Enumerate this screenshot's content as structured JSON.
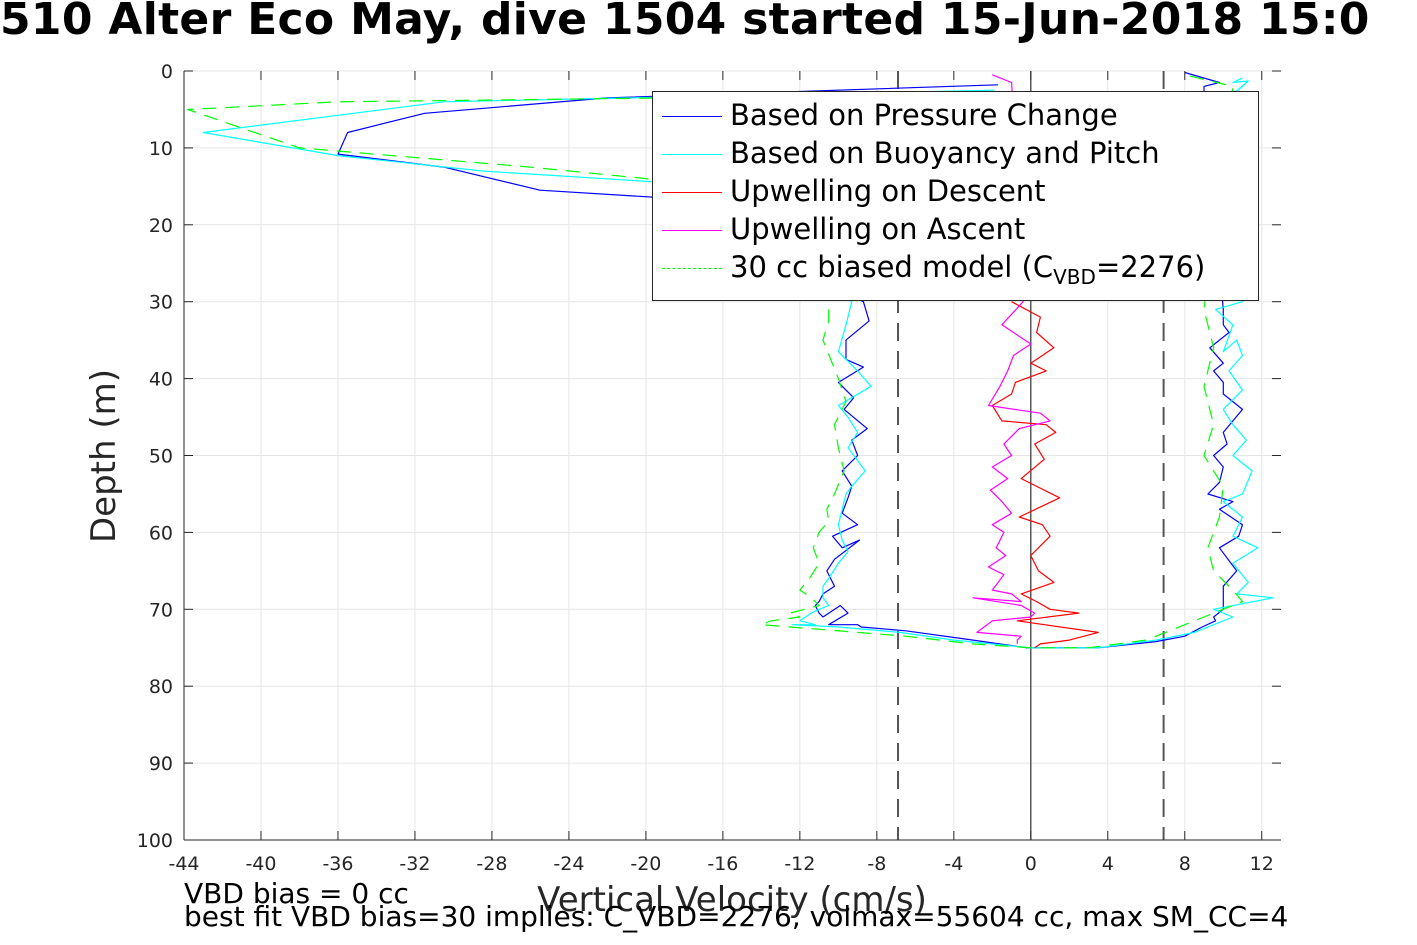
{
  "title": "510 Alter Eco May, dive 1504 started 15-Jun-2018 15:0",
  "footer": {
    "line1": "VBD bias = 0 cc",
    "line2": "best fit VBD bias=30 implies: C_VBD=2276, volmax=55604 cc, max SM_CC=4"
  },
  "legend": {
    "items": [
      {
        "label": "Based on Pressure Change"
      },
      {
        "label": "Based on Buoyancy and Pitch"
      },
      {
        "label": "Upwelling on Descent"
      },
      {
        "label": "Upwelling on Ascent"
      },
      {
        "label_pre": "30 cc biased model (C",
        "label_sub": "VBD",
        "label_post": "=2276)"
      }
    ]
  },
  "chart_data": {
    "type": "line",
    "title": "510 Alter Eco May, dive 1504 started 15-Jun-2018 15:0",
    "xlabel": "Vertical Velocity (cm/s)",
    "ylabel": "Depth (m)",
    "xlim": [
      -44,
      13
    ],
    "ylim": [
      0,
      100
    ],
    "y_reversed": true,
    "grid": true,
    "legend_position": "top-right",
    "xticks": [
      -44,
      -40,
      -36,
      -32,
      -28,
      -24,
      -20,
      -16,
      -12,
      -8,
      -4,
      0,
      4,
      8,
      12
    ],
    "yticks": [
      0,
      10,
      20,
      30,
      40,
      50,
      60,
      70,
      80,
      90,
      100
    ],
    "reference_lines": [
      {
        "x": -6.9,
        "style": "dashed",
        "color": "#555555"
      },
      {
        "x": 6.9,
        "style": "dashed",
        "color": "#555555"
      },
      {
        "x": 0,
        "style": "solid",
        "color": "#333333"
      }
    ],
    "series": [
      {
        "name": "Based on Pressure Change",
        "color": "#0000ff",
        "style": "solid",
        "x": [
          -1.7,
          -22.0,
          -31.5,
          -35.5,
          -36.0,
          -30.5,
          -25.5,
          -19.0,
          -8.7,
          -8.4,
          -9.6,
          -9.6,
          -8.7,
          -10.0,
          -9.2,
          -9.7,
          -8.5,
          -9.3,
          -9.0,
          -9.8,
          -9.3,
          -9.5,
          -9.8,
          -9.0,
          -10.3,
          -9.8,
          -8.9,
          -10.2,
          -10.6,
          -10.2,
          -10.8,
          -11.0,
          -11.2,
          -11.0,
          -10.8,
          -9.9,
          -9.5,
          -10.5,
          -9.0,
          -8.8,
          -6.5,
          -3.0,
          -0.2,
          3.5,
          6.5,
          8.0,
          8.9,
          9.6,
          9.5,
          10.0,
          10.0,
          10.7,
          9.8,
          10.8,
          11.0,
          9.8,
          10.5,
          9.2,
          9.8,
          10.0,
          9.5,
          10.2,
          10.0,
          11.0,
          10.0,
          10.0,
          9.5,
          10.0,
          9.3,
          10.3,
          10.0,
          10.0,
          9.0,
          9.0,
          9.8,
          8.0
        ],
        "y": [
          1.8,
          3.5,
          5.5,
          8.0,
          10.8,
          12.5,
          15.5,
          16.5,
          30.0,
          32.5,
          35.0,
          37.5,
          38.5,
          40.5,
          42.5,
          44.0,
          46.5,
          48.0,
          50.0,
          52.0,
          54.0,
          55.5,
          57.5,
          59.0,
          60.5,
          62.0,
          61.0,
          63.5,
          65.0,
          67.0,
          68.0,
          69.0,
          69.5,
          70.5,
          71.0,
          69.5,
          70.5,
          72.0,
          72.0,
          72.3,
          72.8,
          74.0,
          75.0,
          75.0,
          74.2,
          73.5,
          72.3,
          71.5,
          71.0,
          70.0,
          67.0,
          65.0,
          62.0,
          60.5,
          59.0,
          57.0,
          56.0,
          55.0,
          53.5,
          51.5,
          50.0,
          48.5,
          47.0,
          44.0,
          42.0,
          40.5,
          39.0,
          38.0,
          36.0,
          34.0,
          33.0,
          31.0,
          4.0,
          2.0,
          1.5,
          0.2
        ]
      },
      {
        "name": "Based on Buoyancy and Pitch",
        "color": "#00ffff",
        "style": "solid",
        "x": [
          -1.9,
          -30.5,
          -43.0,
          -36.0,
          -28.5,
          -19.0,
          -9.3,
          -9.6,
          -10.0,
          -9.0,
          -8.3,
          -10.0,
          -9.5,
          -9.0,
          -9.5,
          -8.6,
          -9.3,
          -9.6,
          -9.8,
          -10.0,
          -9.8,
          -9.5,
          -10.0,
          -10.5,
          -10.8,
          -10.8,
          -10.5,
          -11.0,
          -11.4,
          -12.0,
          -11.2,
          -12.4,
          -10.0,
          -6.8,
          -4.0,
          0.0,
          3.5,
          6.5,
          8.5,
          10.5,
          9.5,
          12.6,
          10.7,
          11.3,
          10.5,
          11.8,
          10.5,
          11.0,
          10.0,
          11.0,
          11.5,
          10.5,
          11.2,
          10.5,
          10.0,
          11.0,
          10.3,
          11.0,
          10.7,
          10.0,
          10.5,
          9.6,
          11.0,
          10.0,
          11.0,
          10.5,
          11.3,
          10.5,
          11.0
        ],
        "y": [
          2.5,
          4.0,
          8.0,
          11.0,
          13.0,
          14.5,
          30.0,
          33.0,
          36.5,
          39.0,
          41.0,
          43.5,
          45.0,
          47.0,
          49.0,
          52.0,
          54.0,
          55.0,
          57.0,
          59.0,
          61.0,
          62.5,
          64.0,
          66.0,
          67.0,
          68.5,
          69.5,
          70.0,
          70.5,
          71.5,
          72.0,
          72.0,
          72.3,
          73.0,
          74.0,
          75.0,
          75.0,
          74.0,
          73.0,
          71.0,
          70.0,
          68.5,
          68.0,
          66.5,
          64.0,
          62.0,
          60.5,
          58.0,
          56.0,
          55.0,
          52.0,
          50.0,
          48.0,
          46.0,
          44.0,
          41.5,
          39.0,
          37.0,
          35.0,
          36.5,
          33.0,
          31.0,
          30.0,
          4.0,
          2.0,
          3.0,
          1.3,
          1.5,
          0.9
        ]
      },
      {
        "name": "Upwelling on Descent",
        "color": "#ff0000",
        "style": "solid",
        "x": [
          -1.0,
          0.5,
          0.3,
          1.2,
          0.0,
          0.8,
          -0.8,
          -1.0,
          -2.0,
          -1.5,
          0.8,
          1.3,
          0.2,
          0.7,
          -0.5,
          1.5,
          -0.6,
          0.6,
          1.0,
          0.0,
          0.4,
          1.2,
          -0.5,
          0.3,
          1.0,
          2.5,
          -0.7,
          3.5,
          2.0,
          0.5,
          0.2
        ],
        "y": [
          30.0,
          32.0,
          34.0,
          36.0,
          38.0,
          39.0,
          40.5,
          42.0,
          43.5,
          45.5,
          46.0,
          47.0,
          48.5,
          50.5,
          53.0,
          55.5,
          58.0,
          59.0,
          60.5,
          63.0,
          65.0,
          66.5,
          68.0,
          69.0,
          70.0,
          70.5,
          71.5,
          73.0,
          74.0,
          74.5,
          75.0
        ]
      },
      {
        "name": "Upwelling on Ascent",
        "color": "#ff00ff",
        "style": "solid",
        "x": [
          -2.0,
          -1.0,
          -0.4,
          -1.5,
          0.0,
          -0.9,
          -1.2,
          -1.6,
          -2.2,
          0.5,
          1.0,
          -0.6,
          -1.4,
          -1.0,
          -2.0,
          -1.2,
          -2.1,
          -1.5,
          -1.0,
          -2.0,
          -1.4,
          -1.8,
          -1.3,
          -2.2,
          -1.4,
          -2.0,
          -1.0,
          -0.5,
          -3.0,
          -0.5,
          0.2,
          0.0,
          -2.0,
          -2.8,
          -0.5,
          -0.7,
          -0.7
        ],
        "y": [
          0.5,
          1.5,
          30.0,
          33.0,
          35.5,
          37.0,
          39.0,
          41.0,
          43.5,
          44.5,
          45.5,
          46.5,
          48.5,
          50.0,
          51.5,
          53.0,
          54.5,
          56.0,
          57.5,
          59.0,
          60.0,
          62.0,
          63.0,
          64.5,
          65.5,
          67.5,
          68.0,
          69.0,
          68.5,
          69.5,
          70.5,
          71.0,
          71.5,
          73.0,
          73.5,
          74.0,
          74.5
        ]
      },
      {
        "name": "30 cc biased model (CVBD=2276)",
        "color": "#00ff00",
        "style": "dashed",
        "x": [
          -1.7,
          -36.0,
          -43.8,
          -38.0,
          -26.0,
          -16.0,
          -10.5,
          -10.5,
          -10.8,
          -10.0,
          -9.6,
          -10.2,
          -10.0,
          -9.7,
          -10.2,
          -10.6,
          -10.5,
          -11.0,
          -11.3,
          -11.0,
          -11.5,
          -12.0,
          -11.4,
          -11.0,
          -12.5,
          -12.0,
          -13.5,
          -14.0,
          -6.5,
          -3.0,
          0.0,
          3.0,
          6.0,
          8.0,
          9.0,
          10.0,
          11.0,
          10.5,
          9.5,
          9.2,
          9.8,
          10.0,
          9.0,
          9.5,
          9.0,
          9.5,
          9.0,
          10.5,
          8.0
        ],
        "y": [
          3.0,
          4.0,
          5.0,
          10.0,
          12.5,
          15.0,
          30.0,
          32.5,
          35.0,
          40.0,
          43.0,
          46.0,
          49.0,
          52.0,
          55.0,
          57.0,
          58.5,
          60.0,
          62.0,
          64.0,
          66.0,
          67.5,
          68.5,
          69.5,
          70.5,
          71.0,
          71.5,
          72.0,
          73.5,
          74.5,
          75.0,
          75.0,
          74.0,
          72.0,
          71.0,
          70.0,
          69.0,
          67.5,
          65.0,
          62.0,
          58.0,
          54.0,
          50.0,
          46.0,
          41.0,
          36.0,
          31.0,
          2.0,
          0.5
        ]
      }
    ]
  }
}
